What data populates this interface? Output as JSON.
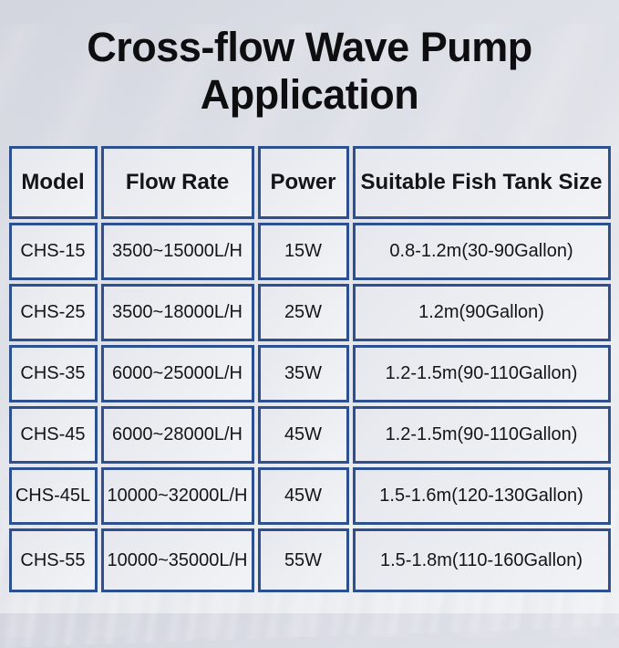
{
  "page": {
    "title": "Cross-flow Wave Pump Application"
  },
  "colors": {
    "table_border": "#2d5190",
    "cell_background": "#eceef2",
    "title_text": "#0e0e10"
  },
  "table": {
    "columns": [
      "Model",
      "Flow Rate",
      "Power",
      "Suitable Fish Tank Size"
    ],
    "rows": [
      [
        "CHS-15",
        "3500~15000L/H",
        "15W",
        "0.8-1.2m(30-90Gallon)"
      ],
      [
        "CHS-25",
        "3500~18000L/H",
        "25W",
        "1.2m(90Gallon)"
      ],
      [
        "CHS-35",
        "6000~25000L/H",
        "35W",
        "1.2-1.5m(90-110Gallon)"
      ],
      [
        "CHS-45",
        "6000~28000L/H",
        "45W",
        "1.2-1.5m(90-110Gallon)"
      ],
      [
        "CHS-45L",
        "10000~32000L/H",
        "45W",
        "1.5-1.6m(120-130Gallon)"
      ],
      [
        "CHS-55",
        "10000~35000L/H",
        "55W",
        "1.5-1.8m(110-160Gallon)"
      ]
    ]
  },
  "chart_data": {
    "type": "table",
    "title": "Cross-flow Wave Pump Application",
    "columns": [
      "Model",
      "Flow Rate",
      "Power",
      "Suitable Fish Tank Size"
    ],
    "rows": [
      [
        "CHS-15",
        "3500~15000L/H",
        "15W",
        "0.8-1.2m(30-90Gallon)"
      ],
      [
        "CHS-25",
        "3500~18000L/H",
        "25W",
        "1.2m(90Gallon)"
      ],
      [
        "CHS-35",
        "6000~25000L/H",
        "35W",
        "1.2-1.5m(90-110Gallon)"
      ],
      [
        "CHS-45",
        "6000~28000L/H",
        "45W",
        "1.2-1.5m(90-110Gallon)"
      ],
      [
        "CHS-45L",
        "10000~32000L/H",
        "45W",
        "1.5-1.6m(120-130Gallon)"
      ],
      [
        "CHS-55",
        "10000~35000L/H",
        "55W",
        "1.5-1.8m(110-160Gallon)"
      ]
    ]
  }
}
